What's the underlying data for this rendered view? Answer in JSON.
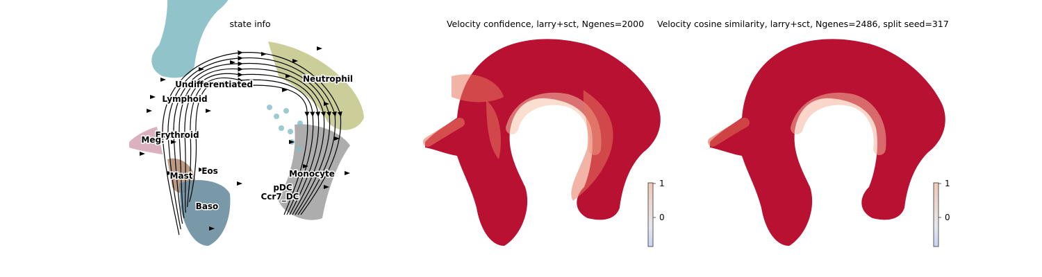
{
  "chart_data": [
    {
      "type": "scatter",
      "title": "state info",
      "xlabel": "",
      "ylabel": "",
      "legend": "on data",
      "stream_arrows": true,
      "categories": [
        "Undifferentiated",
        "Neutrophil",
        "Lymphoid",
        "Erythroid",
        "Meg",
        "Eos",
        "Mast",
        "Baso",
        "Monocyte",
        "pDC",
        "Ccr7_DC"
      ],
      "colors": {
        "Undifferentiated": "#84bcc4",
        "Neutrophil": "#c6c98e",
        "Lymphoid": "#a9cfd3",
        "Erythroid": "#9fc0c2",
        "Meg": "#d8a9b8",
        "Eos": "#8fb8c0",
        "Mast": "#b59078",
        "Baso": "#6a8ea0",
        "Monocyte": "#a4a4a4",
        "pDC": "#b4b4b4",
        "Ccr7_DC": "#cfcfcf",
        "background": "#ffffff",
        "arrow": "#000000"
      }
    },
    {
      "type": "scatter",
      "title": "Velocity confidence, larry+sct, Ngenes=2000",
      "colorbar": {
        "ticks": [
          "1",
          "0"
        ],
        "range": [
          -0.45,
          1
        ],
        "colormap": "coolwarm"
      },
      "colors": {
        "high": "#b40426",
        "mid": "#e8775f",
        "low": "#f6c3aa"
      }
    },
    {
      "type": "scatter",
      "title": "Velocity cosine similarity, larry+sct, Ngenes=2486, split seed=317",
      "colorbar": {
        "ticks": [
          "1",
          "0"
        ],
        "range": [
          -0.45,
          1
        ],
        "colormap": "coolwarm"
      },
      "colors": {
        "high": "#b40426",
        "mid": "#df6651",
        "low": "#f4b59c"
      }
    }
  ]
}
